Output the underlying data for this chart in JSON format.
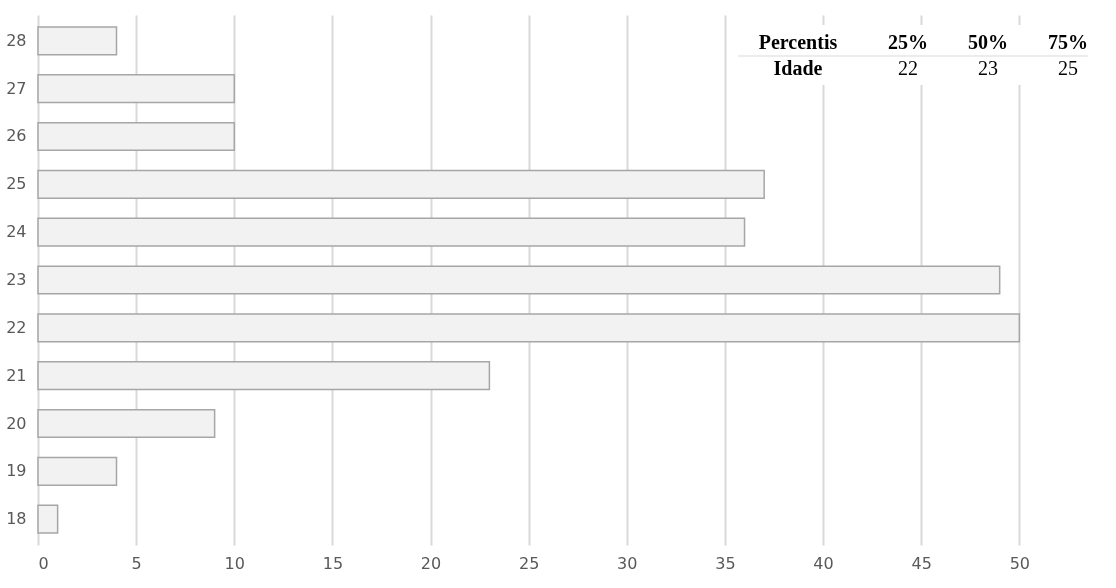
{
  "chart_data": {
    "type": "bar",
    "orientation": "horizontal",
    "categories": [
      "28",
      "27",
      "26",
      "25",
      "24",
      "23",
      "22",
      "21",
      "20",
      "19",
      "18"
    ],
    "values": [
      4,
      10,
      10,
      37,
      36,
      49,
      50,
      23,
      9,
      4,
      1
    ],
    "color": "#f2f2f2",
    "xlim": [
      0,
      53.5
    ],
    "xticks": [
      0,
      5,
      10,
      15,
      20,
      25,
      30,
      35,
      40,
      45,
      50
    ],
    "grid": "x",
    "annotations": [
      "Percentis",
      "25%",
      "50%",
      "75%",
      "Idade",
      "22",
      "23",
      "25"
    ]
  }
}
